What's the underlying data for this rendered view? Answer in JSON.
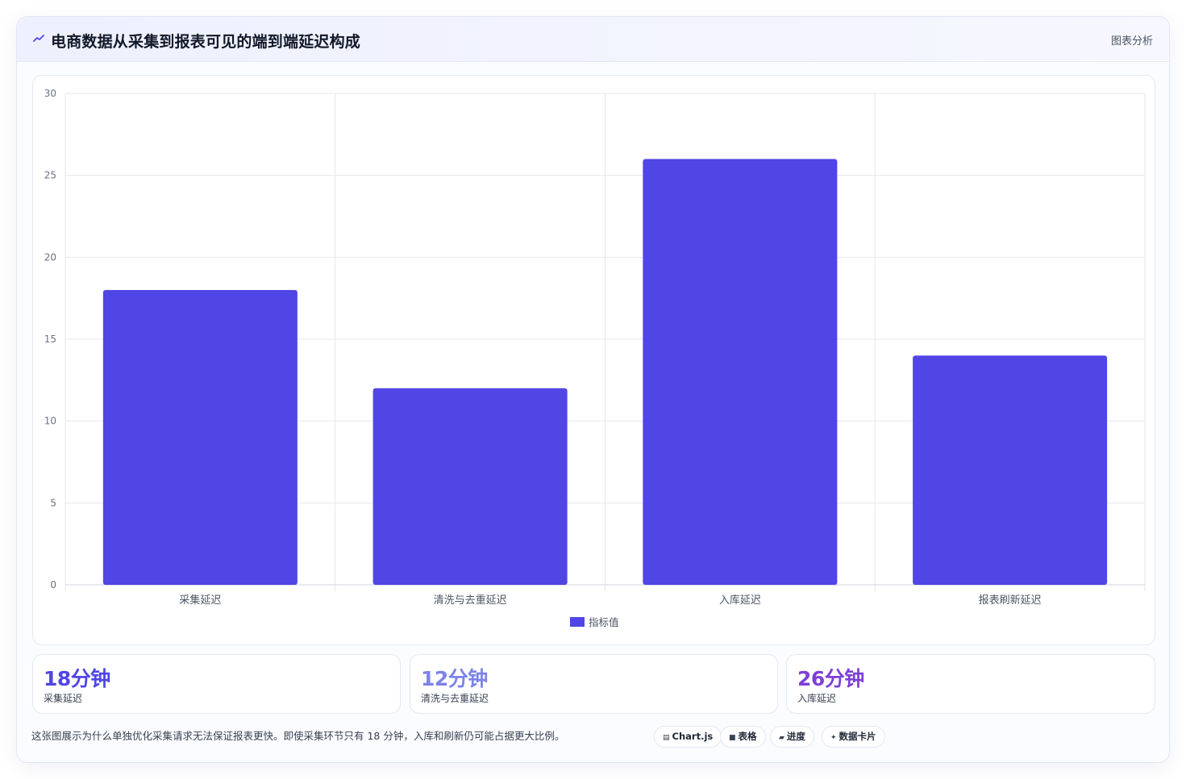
{
  "header": {
    "icon": "chart-line-icon",
    "title": "电商数据从采集到报表可见的端到端延迟构成",
    "tag": "图表分析"
  },
  "chart_data": {
    "type": "bar",
    "categories": [
      "采集延迟",
      "清洗与去重延迟",
      "入库延迟",
      "报表刷新延迟"
    ],
    "series": [
      {
        "name": "指标值",
        "values": [
          18,
          12,
          26,
          14
        ],
        "color": "#5046e5"
      }
    ],
    "title": "",
    "xlabel": "",
    "ylabel": "",
    "ylim": [
      0,
      30
    ],
    "yticks": [
      0,
      5,
      10,
      15,
      20,
      25,
      30
    ],
    "grid": true,
    "legend": "bottom"
  },
  "stats": [
    {
      "value": "18分钟",
      "label": "采集延迟",
      "color": "#4f46e5"
    },
    {
      "value": "12分钟",
      "label": "清洗与去重延迟",
      "color": "#7c83ea"
    },
    {
      "value": "26分钟",
      "label": "入库延迟",
      "color": "#7e3fd6"
    }
  ],
  "footnote": "这张图展示为什么单独优化采集请求无法保证报表更快。即使采集环节只有 18 分钟，入库和刷新仍可能占据更大比例。",
  "pills": [
    {
      "icon": "chart-icon",
      "glyph": "▤",
      "label": "Chart.js"
    },
    {
      "icon": "table-icon",
      "glyph": "■",
      "label": "表格"
    },
    {
      "icon": "progress-icon",
      "glyph": "▰",
      "label": "进度"
    },
    {
      "icon": "sparkle-icon",
      "glyph": "✦",
      "label": "数据卡片"
    }
  ]
}
